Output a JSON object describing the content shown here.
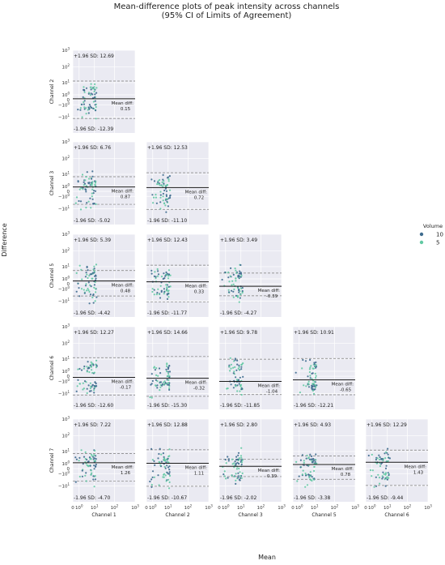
{
  "title": [
    "Mean-difference plots of peak intensity across channels",
    "(95% CI of Limits of Agreement)"
  ],
  "xlabel": "Mean",
  "ylabel": "Difference",
  "legend": {
    "title": "Volume",
    "entries": [
      {
        "label": "10",
        "color": "#3e6c8e"
      },
      {
        "label": "5",
        "color": "#62c9a3"
      }
    ]
  },
  "colors": {
    "panel_bg": "#eaeaf2",
    "grid": "#ffffff",
    "mean_line": "#1a1a1a",
    "loa_line": "#7a7a7a"
  },
  "chart_data": {
    "type": "scatter",
    "scale": "symlog",
    "grid": true,
    "legend_position": "right",
    "row_labels": [
      "Channel 2",
      "Channel 3",
      "Channel 5",
      "Channel 6",
      "Channel 7"
    ],
    "col_labels": [
      "Channel 1",
      "Channel 2",
      "Channel 3",
      "Channel 5",
      "Channel 6"
    ],
    "x_ticks": [
      "0",
      "10^0",
      "10^1",
      "10^2",
      "10^3"
    ],
    "y_ticks": [
      "-10^1",
      "-10^0",
      "0",
      "10^0",
      "10^1",
      "10^2",
      "10^3"
    ],
    "x_range": [
      0,
      1000
    ],
    "y_range": [
      -100,
      1000
    ],
    "panels": [
      {
        "row": 0,
        "col": 0,
        "upper_label": "+1.96 SD: 12.69",
        "lower_label": "-1.96 SD: -12.39",
        "mean_label": "Mean diff:",
        "mean_value": "0.15",
        "upper": 12.69,
        "lower": -12.39,
        "mean": 0.15
      },
      {
        "row": 1,
        "col": 0,
        "upper_label": "+1.96 SD: 6.76",
        "lower_label": "-1.96 SD: -5.02",
        "mean_label": "Mean diff:",
        "mean_value": "0.87",
        "upper": 6.76,
        "lower": -5.02,
        "mean": 0.87
      },
      {
        "row": 1,
        "col": 1,
        "upper_label": "+1.96 SD: 12.53",
        "lower_label": "-1.96 SD: -11.10",
        "mean_label": "Mean diff:",
        "mean_value": "0.72",
        "upper": 12.53,
        "lower": -11.1,
        "mean": 0.72
      },
      {
        "row": 2,
        "col": 0,
        "upper_label": "+1.96 SD: 5.39",
        "lower_label": "-1.96 SD: -4.42",
        "mean_label": "Mean diff:",
        "mean_value": "0.48",
        "upper": 5.39,
        "lower": -4.42,
        "mean": 0.48
      },
      {
        "row": 2,
        "col": 1,
        "upper_label": "+1.96 SD: 12.43",
        "lower_label": "-1.96 SD: -11.77",
        "mean_label": "Mean diff:",
        "mean_value": "0.33",
        "upper": 12.43,
        "lower": -11.77,
        "mean": 0.33
      },
      {
        "row": 2,
        "col": 2,
        "upper_label": "+1.96 SD: 3.49",
        "lower_label": "-1.96 SD: -4.27",
        "mean_label": "Mean diff:",
        "mean_value": "-0.39",
        "upper": 3.49,
        "lower": -4.27,
        "mean": -0.39
      },
      {
        "row": 3,
        "col": 0,
        "upper_label": "+1.96 SD: 12.27",
        "lower_label": "-1.96 SD: -12.60",
        "mean_label": "Mean diff:",
        "mean_value": "-0.17",
        "upper": 12.27,
        "lower": -12.6,
        "mean": -0.17
      },
      {
        "row": 3,
        "col": 1,
        "upper_label": "+1.96 SD: 14.66",
        "lower_label": "-1.96 SD: -15.30",
        "mean_label": "Mean diff:",
        "mean_value": "-0.32",
        "upper": 14.66,
        "lower": -15.3,
        "mean": -0.32
      },
      {
        "row": 3,
        "col": 2,
        "upper_label": "+1.96 SD: 9.78",
        "lower_label": "-1.96 SD: -11.85",
        "mean_label": "Mean diff:",
        "mean_value": "-1.04",
        "upper": 9.78,
        "lower": -11.85,
        "mean": -1.04
      },
      {
        "row": 3,
        "col": 3,
        "upper_label": "+1.96 SD: 10.91",
        "lower_label": "-1.96 SD: -12.21",
        "mean_label": "Mean diff:",
        "mean_value": "-0.65",
        "upper": 10.91,
        "lower": -12.21,
        "mean": -0.65
      },
      {
        "row": 4,
        "col": 0,
        "upper_label": "+1.96 SD: 7.22",
        "lower_label": "-1.96 SD: -4.70",
        "mean_label": "Mean diff:",
        "mean_value": "1.26",
        "upper": 7.22,
        "lower": -4.7,
        "mean": 1.26
      },
      {
        "row": 4,
        "col": 1,
        "upper_label": "+1.96 SD: 12.88",
        "lower_label": "-1.96 SD: -10.67",
        "mean_label": "Mean diff:",
        "mean_value": "1.11",
        "upper": 12.88,
        "lower": -10.67,
        "mean": 1.11
      },
      {
        "row": 4,
        "col": 2,
        "upper_label": "+1.96 SD: 2.80",
        "lower_label": "-1.96 SD: -2.02",
        "mean_label": "Mean diff:",
        "mean_value": "0.39",
        "upper": 2.8,
        "lower": -2.02,
        "mean": 0.39
      },
      {
        "row": 4,
        "col": 3,
        "upper_label": "+1.96 SD: 4.93",
        "lower_label": "-1.96 SD: -3.38",
        "mean_label": "Mean diff:",
        "mean_value": "0.78",
        "upper": 4.93,
        "lower": -3.38,
        "mean": 0.78
      },
      {
        "row": 4,
        "col": 4,
        "upper_label": "+1.96 SD: 12.29",
        "lower_label": "-1.96 SD: -9.44",
        "mean_label": "Mean diff:",
        "mean_value": "1.43",
        "upper": 12.29,
        "lower": -9.44,
        "mean": 1.43
      }
    ]
  }
}
